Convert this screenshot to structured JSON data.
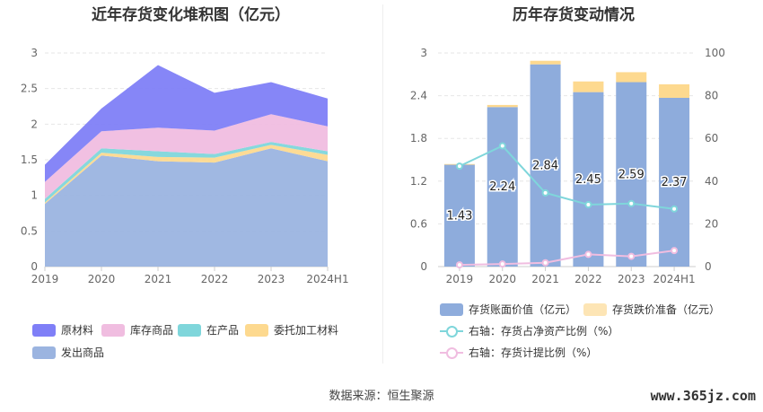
{
  "colors": {
    "raw_materials": "#7f7ff7",
    "finished_goods": "#f0bde0",
    "wip": "#7fd6db",
    "consigned": "#fdd98f",
    "shipped": "#9bb4e0",
    "book_value_bar": "#8eacdc",
    "impairment_bar": "#fdd98f",
    "ratio_line": "#7fd6db",
    "provision_line": "#f0bde0"
  },
  "chart_data": [
    {
      "type": "area",
      "title": "近年存货变化堆积图（亿元）",
      "x": [
        "2019",
        "2020",
        "2021",
        "2022",
        "2023",
        "2024H1"
      ],
      "stacked": true,
      "ylim": [
        0,
        3
      ],
      "yticks": [
        "0",
        "0.5",
        "1",
        "1.5",
        "2",
        "2.5",
        "3"
      ],
      "grid": true,
      "legend_position": "bottom",
      "series": [
        {
          "name": "发出商品",
          "color_key": "shipped",
          "values": [
            0.88,
            1.56,
            1.48,
            1.46,
            1.66,
            1.48
          ]
        },
        {
          "name": "委托加工材料",
          "color_key": "consigned",
          "values": [
            0.02,
            0.04,
            0.06,
            0.07,
            0.05,
            0.09
          ]
        },
        {
          "name": "在产品",
          "color_key": "wip",
          "values": [
            0.05,
            0.06,
            0.08,
            0.05,
            0.04,
            0.05
          ]
        },
        {
          "name": "库存商品",
          "color_key": "finished_goods",
          "values": [
            0.24,
            0.24,
            0.33,
            0.33,
            0.39,
            0.35
          ]
        },
        {
          "name": "原材料",
          "color_key": "raw_materials",
          "values": [
            0.24,
            0.32,
            0.88,
            0.53,
            0.45,
            0.39
          ]
        }
      ],
      "legend": [
        "原材料",
        "库存商品",
        "在产品",
        "委托加工材料",
        "发出商品"
      ]
    },
    {
      "type": "bar",
      "title": "历年存货变动情况",
      "categories": [
        "2019",
        "2020",
        "2021",
        "2022",
        "2023",
        "2024H1"
      ],
      "stacked": true,
      "ylim_left": [
        0,
        3
      ],
      "yticks_left": [
        "0",
        "0.6",
        "1.2",
        "1.8",
        "2.4",
        "3"
      ],
      "ylim_right": [
        0,
        100
      ],
      "yticks_right": [
        "0",
        "20",
        "40",
        "60",
        "80",
        "100"
      ],
      "grid": true,
      "legend_position": "bottom",
      "series": [
        {
          "name": "存货账面价值（亿元）",
          "axis": "left",
          "kind": "bar",
          "color_key": "book_value_bar",
          "values": [
            1.43,
            2.24,
            2.84,
            2.45,
            2.59,
            2.37
          ],
          "labels": [
            "1.43",
            "2.24",
            "2.84",
            "2.45",
            "2.59",
            "2.37"
          ]
        },
        {
          "name": "存货跌价准备（亿元）",
          "axis": "left",
          "kind": "bar",
          "color_key": "impairment_bar",
          "values": [
            0.01,
            0.03,
            0.05,
            0.15,
            0.14,
            0.19
          ]
        },
        {
          "name": "右轴：存货占净资产比例（%）",
          "axis": "right",
          "kind": "line",
          "color_key": "ratio_line",
          "values": [
            47,
            56.5,
            34.5,
            29,
            29.5,
            27
          ]
        },
        {
          "name": "右轴：存货计提比例（%）",
          "axis": "right",
          "kind": "line",
          "color_key": "provision_line",
          "values": [
            0.8,
            1.2,
            1.8,
            5.7,
            4.8,
            7.5
          ]
        }
      ]
    }
  ],
  "footer": {
    "source": "数据来源：恒生聚源",
    "watermark": "www.365jz.com"
  }
}
